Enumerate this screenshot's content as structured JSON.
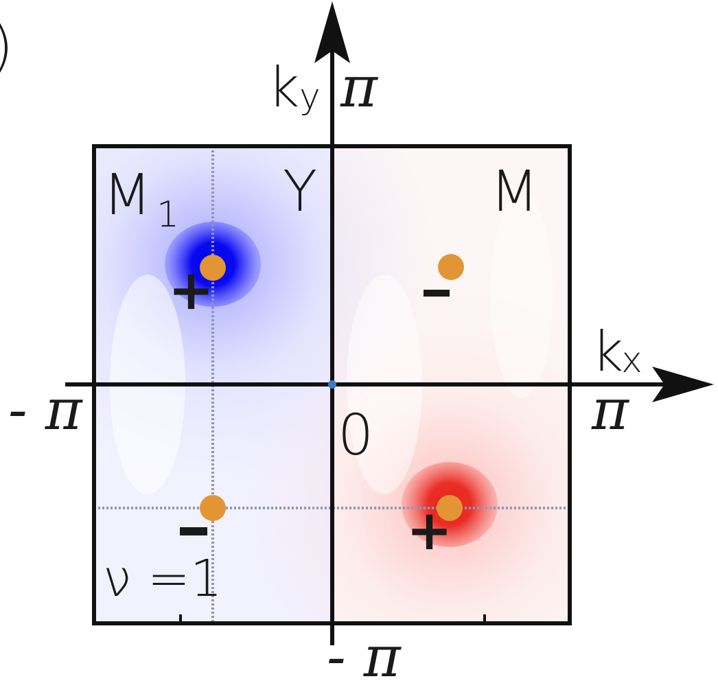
{
  "panel_letter": ")",
  "axes": {
    "kx_label": "kx",
    "kx_main": "k",
    "kx_sub": "x",
    "ky_main": "k",
    "ky_sub": "y",
    "ky_max_label": "π",
    "ky_min_label": "- π",
    "kx_max_label": "π",
    "kx_min_label": "- π",
    "origin_label": "0"
  },
  "points": {
    "M1_main": "M",
    "M1_sub": "1",
    "Y": "Y",
    "M": "M"
  },
  "winding": "ν =1",
  "signs": {
    "top_left": "+",
    "top_right": "-",
    "bottom_left": "-",
    "bottom_right": "+"
  },
  "colors": {
    "blue_peak": "#0000f0",
    "red_peak": "#e8261e",
    "dot": "#e39535",
    "grid": "#8f96b8",
    "origin": "#3a7bc8"
  }
}
